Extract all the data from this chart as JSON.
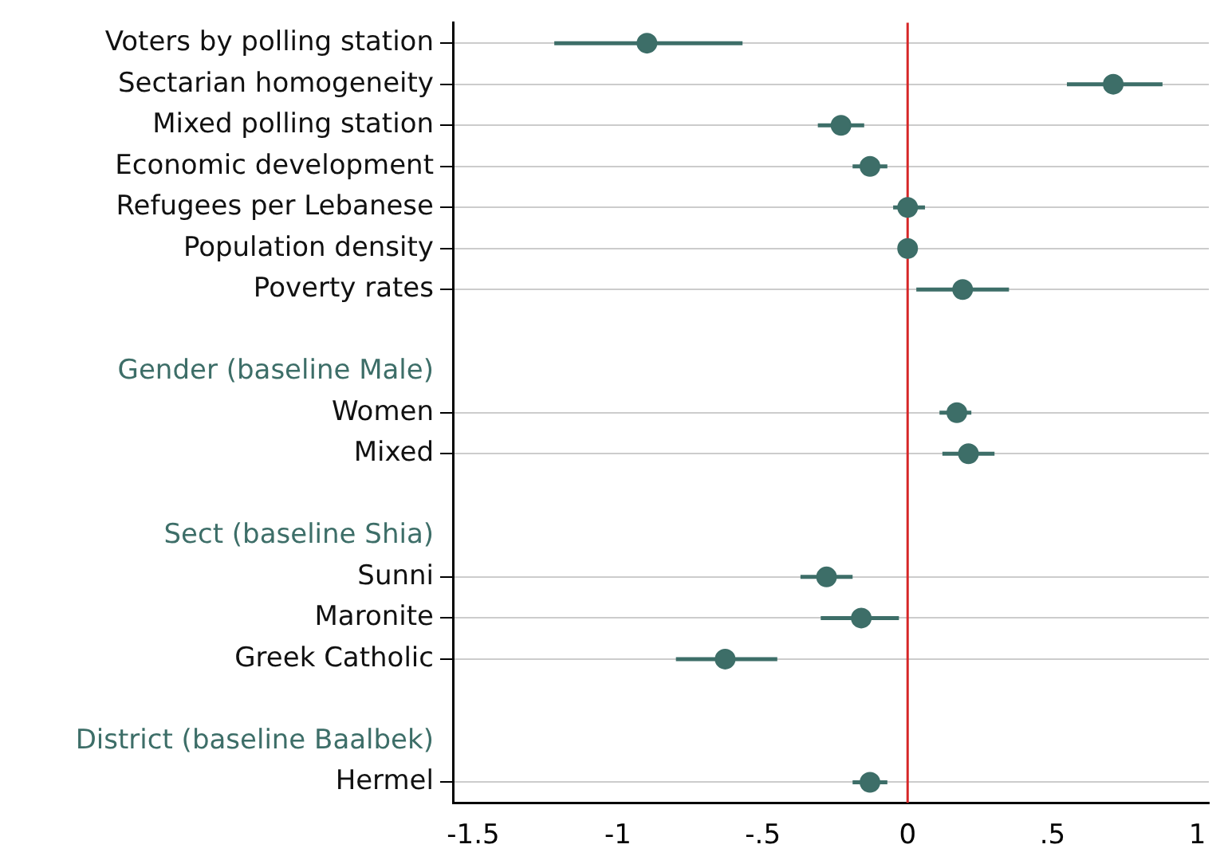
{
  "chart_data": {
    "type": "scatter",
    "orientation": "horizontal",
    "categories": [
      "Voters by polling station",
      "Sectarian homogeneity",
      "Mixed polling station",
      "Economic development",
      "Refugees per Lebanese",
      "Population density",
      "Poverty rates",
      null,
      "Gender (baseline Male)",
      "Women",
      "Mixed",
      null,
      "Sect (baseline Shia)",
      "Sunni",
      "Maronite",
      "Greek Catholic",
      null,
      "District (baseline Baalbek)",
      "Hermel"
    ],
    "values": [
      -0.9,
      0.71,
      -0.23,
      -0.13,
      0.0,
      0.0,
      0.19,
      null,
      null,
      0.17,
      0.21,
      null,
      null,
      -0.28,
      -0.16,
      -0.63,
      null,
      null,
      -0.13
    ],
    "errors": [
      [
        -1.22,
        -0.57
      ],
      [
        0.55,
        0.88
      ],
      [
        -0.31,
        -0.15
      ],
      [
        -0.19,
        -0.07
      ],
      [
        -0.05,
        0.06
      ],
      null,
      [
        0.03,
        0.35
      ],
      null,
      null,
      [
        0.11,
        0.22
      ],
      [
        0.12,
        0.3
      ],
      null,
      null,
      [
        -0.37,
        -0.19
      ],
      [
        -0.3,
        -0.03
      ],
      [
        -0.8,
        -0.45
      ],
      null,
      null,
      [
        -0.19,
        -0.07
      ]
    ],
    "color": "#3d6e68",
    "marker": "circle",
    "xlim": [
      -1.57,
      1.04
    ],
    "xticks": [
      {
        "value": -1.5,
        "label": "-1.5"
      },
      {
        "value": -1,
        "label": "-1"
      },
      {
        "value": -0.5,
        "label": "-.5"
      },
      0,
      {
        "value": 0.5,
        "label": ".5"
      },
      1
    ],
    "grid": "y",
    "ref_lines": [
      {
        "axis": "x",
        "value": 0,
        "color": "#d62728"
      }
    ]
  }
}
